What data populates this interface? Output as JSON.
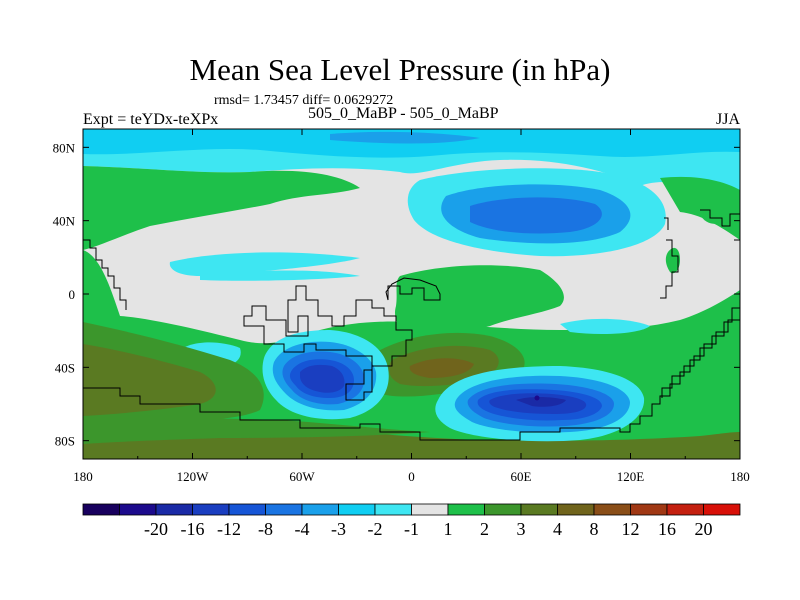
{
  "chart_data": {
    "type": "contour-map",
    "title": "Mean Sea Level Pressure (in hPa)",
    "stats": "rmsd= 1.73457 diff= 0.0629272",
    "left_label": "Expt = teYDx-teXPx",
    "center_label": "505_0_MaBP - 505_0_MaBP",
    "right_label": "JJA",
    "x_ticks": [
      "180",
      "120W",
      "60W",
      "0",
      "60E",
      "120E",
      "180"
    ],
    "x_values": [
      -180,
      -120,
      -60,
      0,
      60,
      120,
      180
    ],
    "y_ticks": [
      "80N",
      "40N",
      "0",
      "40S",
      "80S"
    ],
    "y_values": [
      80,
      40,
      0,
      -40,
      -80
    ],
    "xlim": [
      -180,
      180
    ],
    "ylim": [
      -90,
      90
    ],
    "colorbar": {
      "colors": [
        "#18005e",
        "#1c0a8c",
        "#1a2aa6",
        "#1a3ec0",
        "#1655d6",
        "#1a74e2",
        "#1aa0ea",
        "#10cef2",
        "#3ee6f2",
        "#e4e4e4",
        "#1ec04a",
        "#3c962c",
        "#5a7a22",
        "#70641c",
        "#8a4e18",
        "#a03814",
        "#c42010",
        "#d81008"
      ],
      "labels": [
        "-20",
        "-16",
        "-12",
        "-8",
        "-4",
        "-3",
        "-2",
        "-1",
        "1",
        "2",
        "3",
        "4",
        "8",
        "12",
        "16",
        "20"
      ],
      "label_positions": [
        2,
        3,
        4,
        5,
        6,
        7,
        8,
        9,
        10,
        11,
        12,
        13,
        14,
        15,
        16,
        17
      ]
    },
    "regions": [
      {
        "level": "-2",
        "note": "arctic cyan band"
      },
      {
        "level": "-4",
        "note": "north pacific/europe low"
      },
      {
        "level": "-16",
        "note": "south atlantic low center"
      },
      {
        "level": "-20",
        "note": "indian ocean low center"
      },
      {
        "level": "2",
        "note": "southern ocean belt"
      },
      {
        "level": "4",
        "note": "south atlantic high"
      }
    ]
  }
}
